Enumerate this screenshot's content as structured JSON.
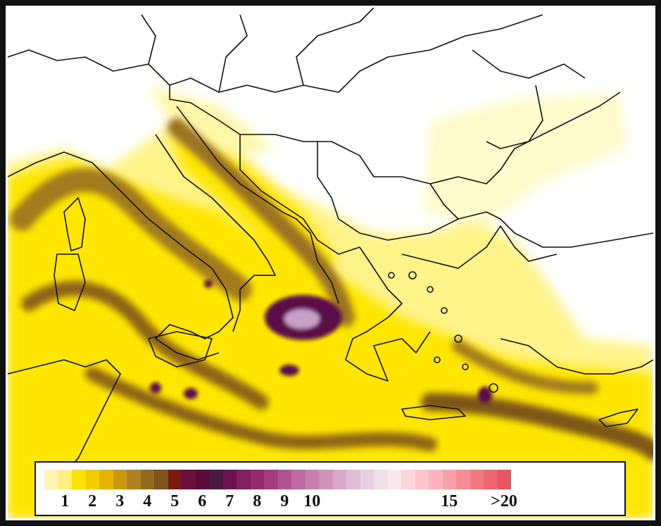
{
  "legend": {
    "colors": [
      "#fff4b0",
      "#fff080",
      "#ffe200",
      "#f2cb00",
      "#e5b400",
      "#c99a10",
      "#b0821c",
      "#93691e",
      "#7b531a",
      "#7a1a10",
      "#6a0f3c",
      "#5a0a3a",
      "#4b1a44",
      "#6a1450",
      "#82205f",
      "#952b6e",
      "#a33b7f",
      "#b2538f",
      "#be6aa0",
      "#c77fae",
      "#cf94bb",
      "#d7a8c8",
      "#e0bcd5",
      "#e8cfe0",
      "#f0dfe9",
      "#f7e8ee",
      "#fbd6dc",
      "#fcc6ce",
      "#fbb3bd",
      "#f8a0aa",
      "#f58c96",
      "#f27882",
      "#ee6571",
      "#eb5562"
    ],
    "ticks": [
      {
        "label": "1",
        "index": 2
      },
      {
        "label": "2",
        "index": 4
      },
      {
        "label": "3",
        "index": 6
      },
      {
        "label": "4",
        "index": 8
      },
      {
        "label": "5",
        "index": 10
      },
      {
        "label": "6",
        "index": 12
      },
      {
        "label": "7",
        "index": 14
      },
      {
        "label": "8",
        "index": 16
      },
      {
        "label": "9",
        "index": 18
      },
      {
        "label": "10",
        "index": 20
      },
      {
        "label": "15",
        "index": 30
      },
      {
        "label": ">20",
        "index": 40
      }
    ]
  }
}
